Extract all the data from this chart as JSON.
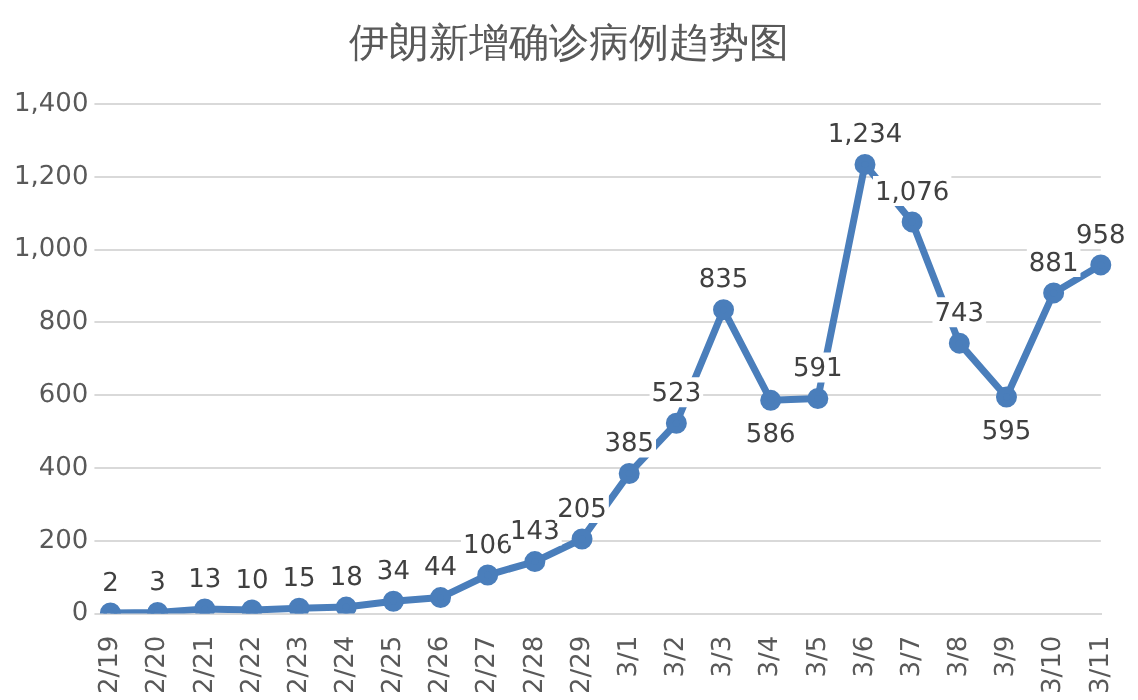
{
  "chart_data": {
    "type": "line",
    "title": "伊朗新增确诊病例趋势图",
    "categories": [
      "2/19",
      "2/20",
      "2/21",
      "2/22",
      "2/23",
      "2/24",
      "2/25",
      "2/26",
      "2/27",
      "2/28",
      "2/29",
      "3/1",
      "3/2",
      "3/3",
      "3/4",
      "3/5",
      "3/6",
      "3/7",
      "3/8",
      "3/9",
      "3/10",
      "3/11"
    ],
    "series": [
      {
        "color": "#4a7ebb",
        "values": [
          2,
          3,
          13,
          10,
          15,
          18,
          34,
          44,
          106,
          143,
          205,
          385,
          523,
          835,
          586,
          591,
          1234,
          1076,
          743,
          595,
          881,
          958
        ],
        "value_labels": [
          "2",
          "3",
          "13",
          "10",
          "15",
          "18",
          "34",
          "44",
          "106",
          "143",
          "205",
          "385",
          "523",
          "835",
          "586",
          "591",
          "1,234",
          "1,076",
          "743",
          "595",
          "881",
          "958"
        ]
      }
    ],
    "ylim": [
      0,
      1400
    ],
    "yticks": [
      0,
      {
        "value": 200,
        "label": "200"
      },
      {
        "value": 400,
        "label": "400"
      },
      {
        "value": 600,
        "label": "600"
      },
      {
        "value": 800,
        "label": "800"
      },
      {
        "value": 1000,
        "label": "1,000"
      },
      {
        "value": 1200,
        "label": "1,200"
      },
      {
        "value": 1400,
        "label": "1,400"
      }
    ],
    "grid": "y",
    "legend": false,
    "marker": "circle",
    "line_style": "solid"
  }
}
